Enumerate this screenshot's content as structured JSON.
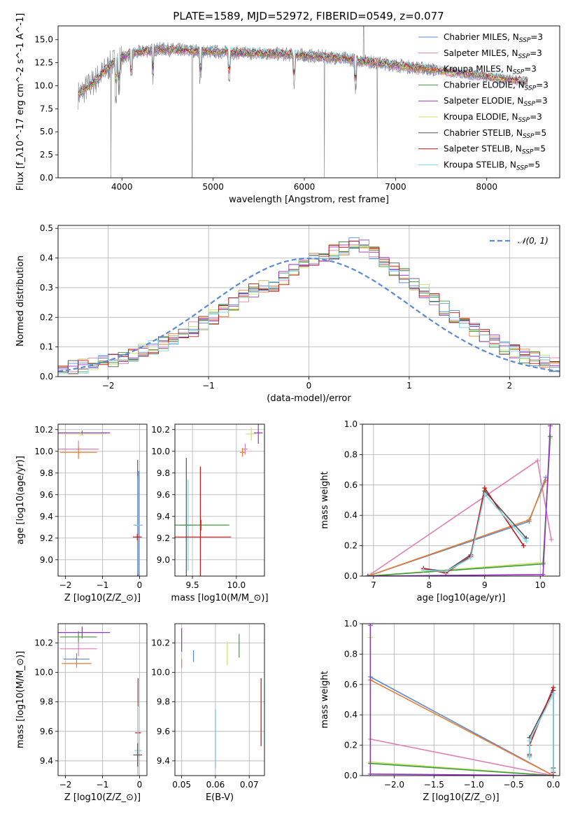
{
  "title": "PLATE=1589, MJD=52972, FIBERID=0549, z=0.077",
  "colors": {
    "chabrier_miles": "#5b8ad6",
    "salpeter_miles": "#e07fb5",
    "kroupa_miles": "#e87d2e",
    "chabrier_elodie": "#3f9a3f",
    "salpeter_elodie": "#9932c8",
    "kroupa_elodie": "#c8e06a",
    "chabrier_stelib": "#555555",
    "salpeter_stelib": "#c01818",
    "kroupa_stelib": "#7fd6e6",
    "data": "#808080",
    "grid": "#b0b0b0"
  },
  "chart_data": [
    {
      "type": "line",
      "name": "spectrum",
      "xlabel": "wavelength [Angstrom, rest frame]",
      "ylabel": "Flux [f_λ10^-17 erg cm^-2 s^-1 A^-1]",
      "xlim": [
        3300,
        8800
      ],
      "ylim": [
        0,
        16.5
      ],
      "xticks": [
        "4000",
        "5000",
        "6000",
        "7000",
        "8000"
      ],
      "yticks": [
        "0.0",
        "2.5",
        "5.0",
        "7.5",
        "10.0",
        "12.5",
        "15.0"
      ],
      "grid": false,
      "legend_position": "top-right",
      "legend": [
        "Chabrier MILES, N_SSP=3",
        "Salpeter MILES, N_SSP=3",
        "Kroupa MILES, N_SSP=3",
        "Chabrier ELODIE, N_SSP=3",
        "Salpeter ELODIE, N_SSP=3",
        "Kroupa ELODIE, N_SSP=3",
        "Chabrier STELIB, N_SSP=5",
        "Salpeter STELIB, N_SSP=5",
        "Kroupa STELIB, N_SSP=5"
      ],
      "continuum": {
        "x": [
          3520,
          3700,
          3900,
          4100,
          4400,
          4800,
          5200,
          5600,
          6000,
          6400,
          6800,
          7200,
          7600,
          8000,
          8400
        ],
        "y": [
          9.0,
          10.5,
          12.5,
          13.5,
          14.0,
          13.8,
          13.6,
          13.5,
          13.3,
          13.0,
          12.5,
          12.0,
          11.5,
          11.0,
          10.5
        ]
      },
      "model_range": [
        3520,
        8450
      ],
      "data_range": [
        3520,
        7430
      ]
    },
    {
      "type": "line",
      "name": "residual-histogram",
      "xlabel": "(data-model)/error",
      "ylabel": "Normed distribution",
      "xlim": [
        -2.5,
        2.5
      ],
      "ylim": [
        0,
        0.51
      ],
      "xticks": [
        "−2",
        "−1",
        "0",
        "1",
        "2"
      ],
      "yticks": [
        "0.0",
        "0.1",
        "0.2",
        "0.3",
        "0.4",
        "0.5"
      ],
      "grid": true,
      "legend_position": "top-right",
      "legend": [
        "𝒩(0, 1)"
      ],
      "bin_width": 0.1,
      "bin_start": -2.5,
      "histogram": [
        0.03,
        0.03,
        0.035,
        0.04,
        0.05,
        0.055,
        0.06,
        0.075,
        0.09,
        0.1,
        0.11,
        0.125,
        0.14,
        0.16,
        0.18,
        0.2,
        0.22,
        0.245,
        0.27,
        0.29,
        0.3,
        0.31,
        0.33,
        0.36,
        0.39,
        0.4,
        0.41,
        0.42,
        0.43,
        0.45,
        0.44,
        0.42,
        0.39,
        0.36,
        0.34,
        0.31,
        0.29,
        0.26,
        0.23,
        0.2,
        0.18,
        0.16,
        0.14,
        0.12,
        0.1,
        0.085,
        0.07,
        0.06,
        0.05,
        0.04
      ]
    },
    {
      "type": "scatter",
      "name": "age-vs-Z",
      "xlabel": "Z [log10(Z/Z_⊙)]",
      "ylabel": "age [log10(age/yr)]",
      "xlim": [
        -2.2,
        0.2
      ],
      "ylim": [
        8.85,
        10.25
      ],
      "xticks": [
        "−2",
        "−1",
        "0"
      ],
      "yticks": [
        "9.0",
        "9.2",
        "9.4",
        "9.6",
        "9.8",
        "10.0",
        "10.2"
      ],
      "grid": true,
      "points": [
        {
          "model": "salpeter_elodie",
          "x": -1.55,
          "xerr": 0.75,
          "y": 10.17,
          "yerr": 0.02
        },
        {
          "model": "kroupa_elodie",
          "x": -1.6,
          "xerr": 0.7,
          "y": 10.16,
          "yerr": 0.02
        },
        {
          "model": "salpeter_miles",
          "x": -1.65,
          "xerr": 0.55,
          "y": 10.02,
          "yerr": 0.08
        },
        {
          "model": "kroupa_miles",
          "x": -1.65,
          "xerr": 0.5,
          "y": 9.99,
          "yerr": 0.06
        },
        {
          "model": "chabrier_stelib",
          "x": -0.05,
          "xerr": 0.1,
          "y": 9.32,
          "yerr": 0.6
        },
        {
          "model": "chabrier_miles",
          "x": -0.02,
          "xerr": 0.1,
          "y": 9.32,
          "yerr": 0.5
        },
        {
          "model": "kroupa_stelib",
          "x": -0.04,
          "xerr": 0.1,
          "y": 9.32,
          "yerr": 0.45
        },
        {
          "model": "salpeter_stelib",
          "x": -0.06,
          "xerr": 0.12,
          "y": 9.21,
          "yerr": 0.03
        }
      ]
    },
    {
      "type": "scatter",
      "name": "age-vs-mass",
      "xlabel": "mass [log10(M/M_⊙)]",
      "ylabel": "",
      "xlim": [
        9.3,
        10.32
      ],
      "ylim": [
        8.85,
        10.25
      ],
      "xticks": [
        "9.5",
        "10.0"
      ],
      "yticks": [
        "9.0",
        "9.2",
        "9.4",
        "9.6",
        "9.8",
        "10.0",
        "10.2"
      ],
      "grid": true,
      "points": [
        {
          "model": "chabrier_stelib",
          "x": 9.43,
          "xerr": 0.07,
          "y": 9.32,
          "yerr": 0.62
        },
        {
          "model": "kroupa_stelib",
          "x": 9.45,
          "xerr": 0.07,
          "y": 9.32,
          "yerr": 0.42
        },
        {
          "model": "chabrier_elodie",
          "x": 9.6,
          "xerr": 0.32,
          "y": 9.32,
          "yerr": 0.05
        },
        {
          "model": "salpeter_stelib",
          "x": 9.59,
          "xerr": 0.35,
          "y": 9.21,
          "yerr": 0.65
        },
        {
          "model": "kroupa_miles",
          "x": 10.07,
          "xerr": 0.03,
          "y": 9.99,
          "yerr": 0.04
        },
        {
          "model": "salpeter_miles",
          "x": 10.1,
          "xerr": 0.03,
          "y": 10.02,
          "yerr": 0.05
        },
        {
          "model": "kroupa_elodie",
          "x": 10.17,
          "xerr": 0.06,
          "y": 10.16,
          "yerr": 0.06
        },
        {
          "model": "salpeter_elodie",
          "x": 10.25,
          "xerr": 0.05,
          "y": 10.17,
          "yerr": 0.1
        }
      ]
    },
    {
      "type": "line",
      "name": "mass-weight-vs-age",
      "xlabel": "age [log10(age/yr)]",
      "ylabel": "mass weight",
      "xlim": [
        6.8,
        10.35
      ],
      "ylim": [
        0,
        1.0
      ],
      "xticks": [
        "7",
        "8",
        "9",
        "10"
      ],
      "yticks": [
        "0.0",
        "0.2",
        "0.4",
        "0.6",
        "0.8",
        "1.0"
      ],
      "grid": true,
      "series": [
        {
          "model": "salpeter_miles",
          "x": [
            6.9,
            9.95,
            10.2
          ],
          "y": [
            0.0,
            0.76,
            0.24
          ]
        },
        {
          "model": "chabrier_miles",
          "x": [
            6.9,
            9.8,
            10.1
          ],
          "y": [
            0.0,
            0.36,
            0.65
          ]
        },
        {
          "model": "kroupa_miles",
          "x": [
            6.9,
            9.8,
            10.1
          ],
          "y": [
            0.0,
            0.37,
            0.63
          ]
        },
        {
          "model": "kroupa_elodie",
          "x": [
            6.9,
            10.05,
            10.18
          ],
          "y": [
            0.0,
            0.09,
            0.91
          ]
        },
        {
          "model": "chabrier_elodie",
          "x": [
            6.9,
            10.05,
            10.18
          ],
          "y": [
            0.0,
            0.08,
            0.92
          ]
        },
        {
          "model": "salpeter_elodie",
          "x": [
            6.9,
            10.05,
            10.18
          ],
          "y": [
            0.0,
            0.01,
            0.99
          ]
        },
        {
          "model": "chabrier_stelib",
          "x": [
            7.9,
            8.3,
            8.75,
            9.0,
            9.75
          ],
          "y": [
            0.05,
            0.03,
            0.14,
            0.56,
            0.25
          ]
        },
        {
          "model": "salpeter_stelib",
          "x": [
            7.9,
            8.3,
            8.75,
            9.0,
            9.7
          ],
          "y": [
            0.05,
            0.02,
            0.13,
            0.58,
            0.2
          ]
        },
        {
          "model": "kroupa_stelib",
          "x": [
            7.9,
            8.3,
            8.75,
            9.0,
            9.75
          ],
          "y": [
            0.04,
            0.03,
            0.12,
            0.54,
            0.23
          ]
        }
      ]
    },
    {
      "type": "scatter",
      "name": "mass-vs-Z",
      "xlabel": "Z [log10(Z/Z_⊙)]",
      "ylabel": "mass [log10(M/M_⊙)]",
      "xlim": [
        -2.2,
        0.2
      ],
      "ylim": [
        9.3,
        10.33
      ],
      "xticks": [
        "−2",
        "−1",
        "0"
      ],
      "yticks": [
        "9.4",
        "9.6",
        "9.8",
        "10.0",
        "10.2"
      ],
      "grid": true,
      "points": [
        {
          "model": "salpeter_elodie",
          "x": -1.55,
          "xerr": 0.75,
          "y": 10.27,
          "yerr": 0.04
        },
        {
          "model": "chabrier_elodie",
          "x": -1.65,
          "xerr": 0.5,
          "y": 10.24,
          "yerr": 0.04
        },
        {
          "model": "salpeter_miles",
          "x": -1.65,
          "xerr": 0.5,
          "y": 10.16,
          "yerr": 0.05
        },
        {
          "model": "chabrier_miles",
          "x": -1.7,
          "xerr": 0.35,
          "y": 10.09,
          "yerr": 0.04
        },
        {
          "model": "kroupa_miles",
          "x": -1.7,
          "xerr": 0.4,
          "y": 10.06,
          "yerr": 0.03
        },
        {
          "model": "salpeter_stelib",
          "x": -0.04,
          "xerr": 0.08,
          "y": 9.59,
          "yerr": 0.37
        },
        {
          "model": "kroupa_stelib",
          "x": -0.04,
          "xerr": 0.1,
          "y": 9.47,
          "yerr": 0.3
        },
        {
          "model": "chabrier_stelib",
          "x": -0.05,
          "xerr": 0.12,
          "y": 9.44,
          "yerr": 0.08
        }
      ]
    },
    {
      "type": "scatter",
      "name": "mass-vs-ebv",
      "xlabel": "E(B-V)",
      "ylabel": "",
      "xlim": [
        0.048,
        0.0745
      ],
      "ylim": [
        9.3,
        10.33
      ],
      "xticks": [
        "0.05",
        "0.06",
        "0.07"
      ],
      "yticks": [
        "9.4",
        "9.6",
        "9.8",
        "10.0",
        "10.2"
      ],
      "grid": true,
      "points": [
        {
          "model": "salpeter_elodie",
          "x": 0.05,
          "y": 10.22,
          "yerr": 0.08
        },
        {
          "model": "kroupa_miles",
          "x": 0.05,
          "y": 10.06,
          "yerr": 0.03
        },
        {
          "model": "chabrier_miles",
          "x": 0.0535,
          "y": 10.11,
          "yerr": 0.04
        },
        {
          "model": "chabrier_stelib",
          "x": 0.06,
          "y": 9.55,
          "yerr": 0.2
        },
        {
          "model": "kroupa_stelib",
          "x": 0.06,
          "y": 9.55,
          "yerr": 0.2
        },
        {
          "model": "kroupa_elodie",
          "x": 0.0635,
          "y": 10.13,
          "yerr": 0.08
        },
        {
          "model": "chabrier_elodie",
          "x": 0.067,
          "y": 10.18,
          "yerr": 0.08
        },
        {
          "model": "salpeter_stelib",
          "x": 0.0735,
          "y": 9.73,
          "yerr": 0.23
        }
      ]
    },
    {
      "type": "line",
      "name": "mass-weight-vs-Z",
      "xlabel": "Z [log10(Z/Z_⊙)]",
      "ylabel": "mass weight",
      "xlim": [
        -2.4,
        0.08
      ],
      "ylim": [
        0,
        1.0
      ],
      "xticks": [
        "−2.0",
        "−1.5",
        "−1.0",
        "−0.5",
        "0.0"
      ],
      "yticks": [
        "0.0",
        "0.2",
        "0.4",
        "0.6",
        "0.8",
        "1.0"
      ],
      "grid": true,
      "series": [
        {
          "model": "chabrier_miles",
          "x": [
            -2.3,
            0.0
          ],
          "y": [
            0.65,
            0.0
          ]
        },
        {
          "model": "kroupa_miles",
          "x": [
            -2.3,
            0.0
          ],
          "y": [
            0.63,
            0.0
          ]
        },
        {
          "model": "salpeter_miles",
          "x": [
            -2.3,
            0.0
          ],
          "y": [
            0.24,
            0.0
          ]
        },
        {
          "model": "kroupa_elodie",
          "x": [
            -2.3,
            -2.3,
            0.0
          ],
          "y": [
            0.91,
            0.09,
            0.0
          ]
        },
        {
          "model": "chabrier_elodie",
          "x": [
            -2.3,
            0.0
          ],
          "y": [
            0.08,
            0.0
          ]
        },
        {
          "model": "salpeter_elodie",
          "x": [
            -2.3,
            -2.3,
            0.0
          ],
          "y": [
            0.99,
            0.01,
            0.0
          ]
        },
        {
          "model": "chabrier_stelib",
          "x": [
            -0.3,
            -0.3,
            0.0,
            0.0
          ],
          "y": [
            0.14,
            0.25,
            0.56,
            0.05
          ]
        },
        {
          "model": "salpeter_stelib",
          "x": [
            -0.3,
            -0.3,
            0.0,
            0.0
          ],
          "y": [
            0.13,
            0.2,
            0.58,
            0.02
          ]
        },
        {
          "model": "kroupa_stelib",
          "x": [
            -0.3,
            -0.3,
            0.0,
            0.0
          ],
          "y": [
            0.12,
            0.23,
            0.54,
            0.03
          ]
        }
      ]
    }
  ]
}
